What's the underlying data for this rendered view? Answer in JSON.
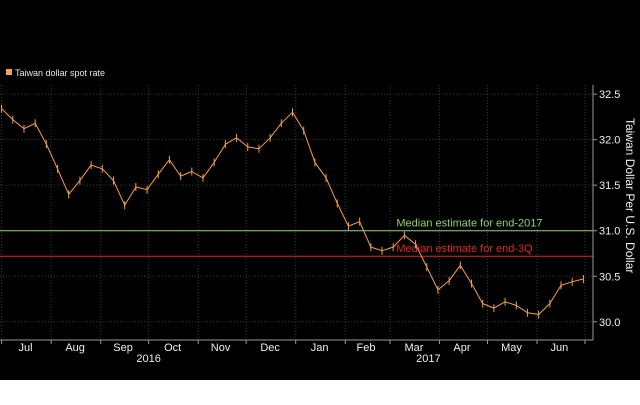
{
  "chart_data": {
    "type": "line",
    "legend": {
      "label": "Taiwan dollar spot rate",
      "color": "#f5a04a",
      "placement": "top-left"
    },
    "ylabel": "Taiwan Dollar Per U.S. Dollar",
    "ylim": [
      29.8,
      32.6
    ],
    "yticks": [
      {
        "value": 32.5,
        "label": "32.5"
      },
      {
        "value": 32.0,
        "label": "32.0"
      },
      {
        "value": 31.5,
        "label": "31.5"
      },
      {
        "value": 31.0,
        "label": "31.0"
      },
      {
        "value": 30.5,
        "label": "30.5"
      },
      {
        "value": 30.0,
        "label": "30.0"
      }
    ],
    "xlim": [
      "2016-06-30",
      "2017-07-06"
    ],
    "month_labels": [
      {
        "label": "Jul",
        "date": "2016-07-16"
      },
      {
        "label": "Aug",
        "date": "2016-08-16"
      },
      {
        "label": "Sep",
        "date": "2016-09-15"
      },
      {
        "label": "Oct",
        "date": "2016-10-16"
      },
      {
        "label": "Nov",
        "date": "2016-11-15"
      },
      {
        "label": "Dec",
        "date": "2016-12-16"
      },
      {
        "label": "Jan",
        "date": "2017-01-16"
      },
      {
        "label": "Feb",
        "date": "2017-02-14"
      },
      {
        "label": "Mar",
        "date": "2017-03-16"
      },
      {
        "label": "Apr",
        "date": "2017-04-15"
      },
      {
        "label": "May",
        "date": "2017-05-16"
      },
      {
        "label": "Jun",
        "date": "2017-06-15"
      }
    ],
    "year_labels": [
      {
        "label": "2016",
        "date": "2016-10-01"
      },
      {
        "label": "2017",
        "date": "2017-03-25"
      }
    ],
    "grid": true,
    "series": [
      {
        "name": "Taiwan dollar spot rate",
        "color": "#f5a04a",
        "points": [
          [
            "2016-07-01",
            32.34
          ],
          [
            "2016-07-08",
            32.22
          ],
          [
            "2016-07-15",
            32.12
          ],
          [
            "2016-07-22",
            32.18
          ],
          [
            "2016-07-29",
            31.95
          ],
          [
            "2016-08-05",
            31.68
          ],
          [
            "2016-08-12",
            31.4
          ],
          [
            "2016-08-19",
            31.55
          ],
          [
            "2016-08-26",
            31.72
          ],
          [
            "2016-09-02",
            31.68
          ],
          [
            "2016-09-09",
            31.55
          ],
          [
            "2016-09-16",
            31.28
          ],
          [
            "2016-09-23",
            31.48
          ],
          [
            "2016-09-30",
            31.45
          ],
          [
            "2016-10-07",
            31.62
          ],
          [
            "2016-10-14",
            31.78
          ],
          [
            "2016-10-21",
            31.6
          ],
          [
            "2016-10-28",
            31.65
          ],
          [
            "2016-11-04",
            31.58
          ],
          [
            "2016-11-11",
            31.75
          ],
          [
            "2016-11-18",
            31.95
          ],
          [
            "2016-11-25",
            32.02
          ],
          [
            "2016-12-02",
            31.92
          ],
          [
            "2016-12-09",
            31.9
          ],
          [
            "2016-12-16",
            32.02
          ],
          [
            "2016-12-23",
            32.18
          ],
          [
            "2016-12-30",
            32.3
          ],
          [
            "2017-01-06",
            32.1
          ],
          [
            "2017-01-13",
            31.75
          ],
          [
            "2017-01-20",
            31.58
          ],
          [
            "2017-01-27",
            31.3
          ],
          [
            "2017-02-03",
            31.05
          ],
          [
            "2017-02-10",
            31.1
          ],
          [
            "2017-02-17",
            30.82
          ],
          [
            "2017-02-24",
            30.78
          ],
          [
            "2017-03-03",
            30.82
          ],
          [
            "2017-03-10",
            30.95
          ],
          [
            "2017-03-17",
            30.85
          ],
          [
            "2017-03-24",
            30.6
          ],
          [
            "2017-03-31",
            30.35
          ],
          [
            "2017-04-07",
            30.45
          ],
          [
            "2017-04-14",
            30.62
          ],
          [
            "2017-04-21",
            30.42
          ],
          [
            "2017-04-28",
            30.2
          ],
          [
            "2017-05-05",
            30.15
          ],
          [
            "2017-05-12",
            30.22
          ],
          [
            "2017-05-19",
            30.18
          ],
          [
            "2017-05-26",
            30.1
          ],
          [
            "2017-06-02",
            30.08
          ],
          [
            "2017-06-09",
            30.2
          ],
          [
            "2017-06-16",
            30.4
          ],
          [
            "2017-06-23",
            30.44
          ],
          [
            "2017-06-30",
            30.47
          ]
        ]
      }
    ],
    "reference_lines": [
      {
        "label": "Median estimate for end-2017",
        "value": 31.0,
        "color": "#8ed16a",
        "label_date": "2017-03-05"
      },
      {
        "label": "Median estimate for end-3Q",
        "value": 30.72,
        "color": "#e0252b",
        "label_date": "2017-03-05"
      }
    ]
  }
}
